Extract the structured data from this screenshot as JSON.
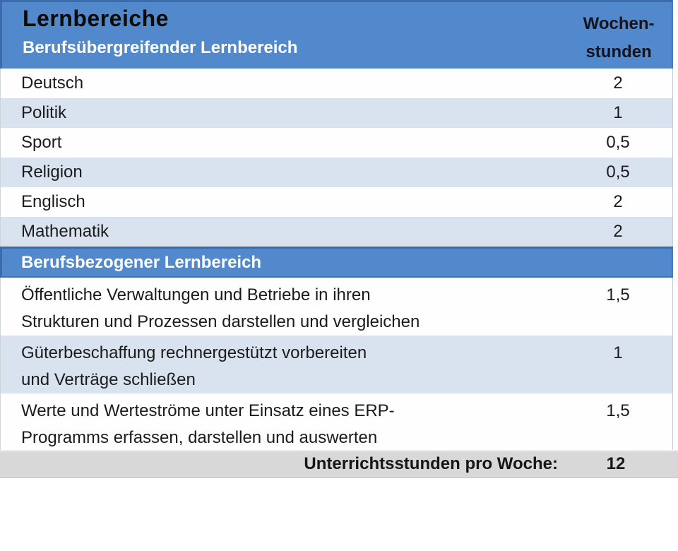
{
  "table": {
    "title": "Lernbereiche",
    "hours_header": {
      "line1": "Wochen-",
      "line2": "stunden"
    },
    "sections": [
      {
        "heading": "Berufsübergreifender Lernbereich",
        "rows": [
          {
            "lines": [
              "Deutsch"
            ],
            "hours": "2"
          },
          {
            "lines": [
              "Politik"
            ],
            "hours": "1"
          },
          {
            "lines": [
              "Sport"
            ],
            "hours": "0,5"
          },
          {
            "lines": [
              "Religion"
            ],
            "hours": "0,5"
          },
          {
            "lines": [
              "Englisch"
            ],
            "hours": "2"
          },
          {
            "lines": [
              "Mathematik"
            ],
            "hours": "2"
          }
        ]
      },
      {
        "heading": "Berufsbezogener Lernbereich",
        "rows": [
          {
            "lines": [
              "Öffentliche Verwaltungen und Betriebe in ihren",
              "Strukturen und Prozessen darstellen und vergleichen"
            ],
            "hours": "1,5"
          },
          {
            "lines": [
              "Güterbeschaffung rechnergestützt vorbereiten",
              "und Verträge schließen"
            ],
            "hours": "1"
          },
          {
            "lines": [
              "Werte und Werteströme unter Einsatz eines ERP-",
              "Programms erfassen, darstellen und auswerten"
            ],
            "hours": "1,5"
          }
        ]
      }
    ],
    "footer": {
      "label": "Unterrichtsstunden pro Woche:",
      "total": "12"
    }
  },
  "colors": {
    "header_blue": "#5289cc",
    "header_border_blue": "#3a6cab",
    "alt_row_blue": "#d9e2ef",
    "footer_gray": "#d8d8d8",
    "body_text": "#1b1b1b"
  }
}
